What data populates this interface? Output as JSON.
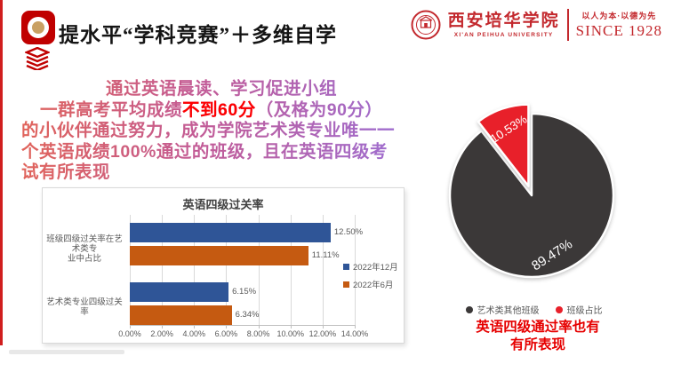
{
  "slide_title": "提水平“学科竞赛”＋多维自学",
  "university": {
    "name_cn": "西安培华学院",
    "name_en": "XI'AN PEIHUA UNIVERSITY",
    "motto": "以人为本·以德为先",
    "since": "SINCE 1928"
  },
  "paragraph": {
    "line1": "通过英语晨读、学习促进小组",
    "line2_pre": "一群高考平均成绩",
    "line2_highlight": "不到60分",
    "line2_post": "（及格为90分）",
    "line3": "的小伙伴通过努力，成为学院艺术类专业唯一一",
    "line4": "个英语成绩100%通过的班级，且在英语四级考",
    "line5": "试有所表现"
  },
  "note": {
    "line1": "英语四级通过率也有",
    "line2": "有所表现"
  },
  "colors": {
    "accent_red": "#c00000",
    "logo_red": "#c3282d",
    "bar_blue": "#2f5597",
    "bar_orange": "#c55a11",
    "pie_dark": "#3b3838",
    "pie_red": "#e8202a",
    "note_red": "#e60000",
    "chart_text_gray": "#595959"
  },
  "chart_data": [
    {
      "type": "bar",
      "orientation": "horizontal",
      "title": "英语四级过关率",
      "categories": [
        "班级四级过关率在艺术类专业中占比",
        "艺术类专业四级过关率"
      ],
      "categories_wrapped": [
        [
          "班级四级过关率在艺术类专",
          "业中占比"
        ],
        [
          "艺术类专业四级过关率"
        ]
      ],
      "series": [
        {
          "name": "2022年12月",
          "color": "#2f5597",
          "values": [
            12.5,
            6.15
          ],
          "labels": [
            "12.50%",
            "6.15%"
          ]
        },
        {
          "name": "2022年6月",
          "color": "#c55a11",
          "values": [
            11.11,
            6.34
          ],
          "labels": [
            "11.11%",
            "6.34%"
          ]
        }
      ],
      "xlim": [
        0,
        14
      ],
      "x_ticks": [
        "0.00%",
        "2.00%",
        "4.00%",
        "6.00%",
        "8.00%",
        "10.00%",
        "12.00%",
        "14.00%"
      ],
      "grid": true,
      "legend_position": "right",
      "data_labels": true
    },
    {
      "type": "pie",
      "start_angle_deg": 0,
      "direction": "clockwise",
      "slices": [
        {
          "label": "艺术类其他班级",
          "value": 89.47,
          "display": "89.47%",
          "color": "#3b3838",
          "exploded": false
        },
        {
          "label": "班级占比",
          "value": 10.53,
          "display": "10.53%",
          "color": "#e8202a",
          "exploded": true
        }
      ],
      "legend_position": "bottom",
      "label_color": "#ffffff"
    }
  ]
}
